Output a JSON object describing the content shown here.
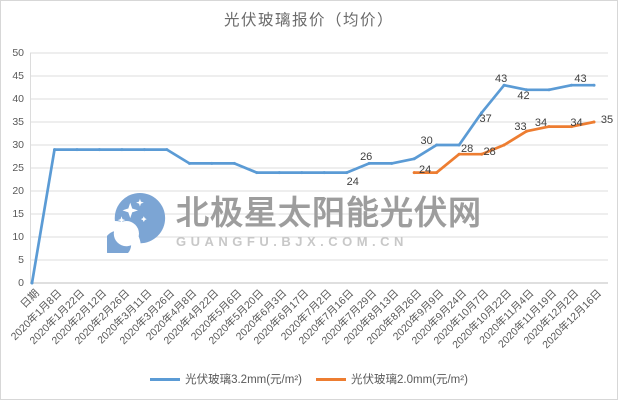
{
  "chart_data": {
    "type": "line",
    "title": "光伏玻璃报价（均价）",
    "xlabel": "",
    "ylabel": "",
    "ylim": [
      0,
      50
    ],
    "ytick_step": 5,
    "grid": true,
    "legend_position": "bottom",
    "categories": [
      "日期",
      "2020年1月8日",
      "2020年1月22日",
      "2020年2月12日",
      "2020年2月26日",
      "2020年3月11日",
      "2020年3月26日",
      "2020年4月8日",
      "2020年4月22日",
      "2020年5月6日",
      "2020年5月20日",
      "2020年6月3日",
      "2020年6月17日",
      "2020年7月2日",
      "2020年7月16日",
      "2020年7月29日",
      "2020年8月13日",
      "2020年8月26日",
      "2020年9月9日",
      "2020年9月24日",
      "2020年10月7日",
      "2020年10月22日",
      "2020年11月4日",
      "2020年11月19日",
      "2020年12月2日",
      "2020年12月16日"
    ],
    "series": [
      {
        "name": "光伏玻璃3.2mm(元/m²)",
        "color": "#5B9BD5",
        "values": [
          0,
          29,
          29,
          29,
          29,
          29,
          29,
          26,
          26,
          26,
          24,
          24,
          24,
          24,
          24,
          26,
          26,
          27,
          30,
          30,
          37,
          43,
          42,
          42,
          43,
          43
        ],
        "point_labels": [
          {
            "index": 14,
            "text": "24",
            "dx": 6,
            "dy": 9
          },
          {
            "index": 15,
            "text": "26",
            "dx": -3,
            "dy": -6
          },
          {
            "index": 18,
            "text": "30",
            "dx": -10,
            "dy": -4
          },
          {
            "index": 20,
            "text": "37",
            "dx": 4,
            "dy": 6
          },
          {
            "index": 21,
            "text": "43",
            "dx": -3,
            "dy": -6
          },
          {
            "index": 22,
            "text": "42",
            "dx": -3,
            "dy": 6
          },
          {
            "index": 24,
            "text": "43",
            "dx": 9,
            "dy": -6
          }
        ]
      },
      {
        "name": "光伏玻璃2.0mm(元/m²)",
        "color": "#ED7D31",
        "values": [
          null,
          null,
          null,
          null,
          null,
          null,
          null,
          null,
          null,
          null,
          null,
          null,
          null,
          null,
          null,
          null,
          null,
          24,
          24,
          28,
          28,
          30,
          33,
          34,
          34,
          35
        ],
        "point_labels": [
          {
            "index": 17,
            "text": "24",
            "dx": 11,
            "dy": -3
          },
          {
            "index": 19,
            "text": "28",
            "dx": 8,
            "dy": -5
          },
          {
            "index": 20,
            "text": "28",
            "dx": 8,
            "dy": -2
          },
          {
            "index": 22,
            "text": "33",
            "dx": -6,
            "dy": -4
          },
          {
            "index": 23,
            "text": "34",
            "dx": -8,
            "dy": -4
          },
          {
            "index": 24,
            "text": "34",
            "dx": 5,
            "dy": -4
          },
          {
            "index": 25,
            "text": "35",
            "dx": 13,
            "dy": -2
          }
        ]
      }
    ]
  },
  "watermark": {
    "brand": "北极星太阳能光伏网",
    "url": "GUANGFU.BJX.COM.CN",
    "logo_color": "#7CA5D4"
  },
  "colors": {
    "gridline": "#DCDCDC",
    "axis_line": "#BFBFBF",
    "tick_text": "#595959",
    "title_text": "#6B6B6B",
    "data_label_text": "#3F3F3F"
  }
}
